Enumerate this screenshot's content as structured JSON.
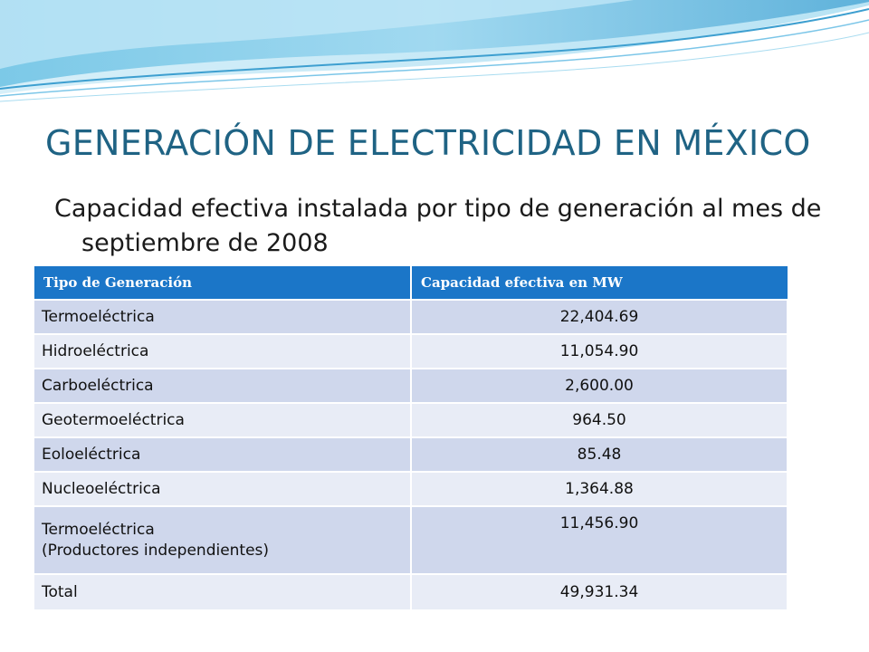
{
  "slide": {
    "title": "GENERACIÓN DE ELECTRICIDAD EN MÉXICO",
    "subtitle": "Capacidad efectiva instalada por tipo de generación al mes de septiembre de 2008"
  },
  "table": {
    "headers": [
      "Tipo de Generación",
      "Capacidad  efectiva en MW"
    ],
    "rows": [
      {
        "tipo": "Termoeléctrica",
        "capacidad": "22,404.69"
      },
      {
        "tipo": "Hidroeléctrica",
        "capacidad": "11,054.90"
      },
      {
        "tipo": "Carboeléctrica",
        "capacidad": "2,600.00"
      },
      {
        "tipo": "Geotermoeléctrica",
        "capacidad": "964.50"
      },
      {
        "tipo": "Eoloeléctrica",
        "capacidad": "85.48"
      },
      {
        "tipo": "Nucleoeléctrica",
        "capacidad": "1,364.88"
      },
      {
        "tipo": "Termoeléctrica\n(Productores independientes)",
        "capacidad": "11,456.90"
      },
      {
        "tipo": "Total",
        "capacidad": "49,931.34"
      }
    ]
  },
  "colors": {
    "title": "#1f6384",
    "header_bg": "#1b76c8",
    "row_dark": "#cfd7ec",
    "row_light": "#e8ecf6",
    "wave_primary": "#5ab4dc",
    "wave_secondary": "#a9dcf0"
  }
}
